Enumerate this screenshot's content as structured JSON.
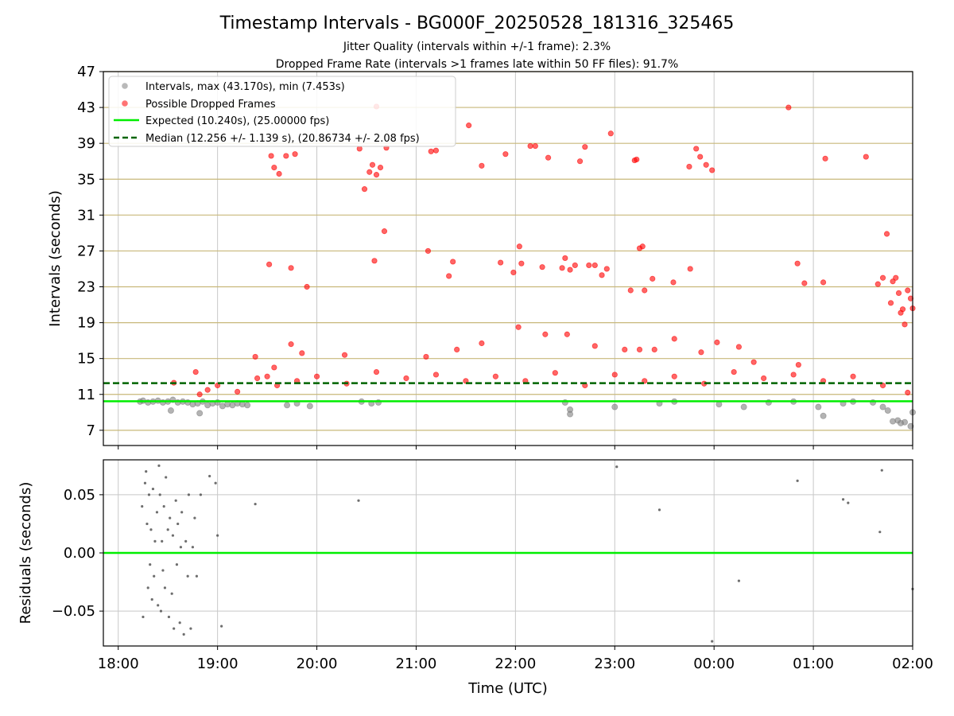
{
  "title": "Timestamp Intervals - BG000F_20250528_181316_325465",
  "subtitle_1": "Jitter Quality (intervals within +/-1 frame): 2.3%",
  "subtitle_2": "Dropped Frame Rate (intervals >1 frames late within 50 FF files): 91.7%",
  "colors": {
    "intervals": "#808080",
    "dropped": "#ff0000",
    "expected": "#00ee00",
    "median": "#006400",
    "hgrid": "#c8b87a",
    "vgrid": "#c8c8c8"
  },
  "chart_data": [
    {
      "type": "scatter",
      "panel": "top",
      "xlabel": "",
      "ylabel": "Intervals (seconds)",
      "x_unit": "hours since 18:00 UTC",
      "xlim": [
        -0.15,
        8.0
      ],
      "ylim": [
        5.3,
        47
      ],
      "yticks": [
        7,
        11,
        15,
        19,
        23,
        27,
        31,
        35,
        39,
        43,
        47
      ],
      "ytick_labels": [
        "7",
        "11",
        "15",
        "19",
        "23",
        "27",
        "31",
        "35",
        "39",
        "43",
        "47"
      ],
      "grid": "horizontal gridlines at y ticks, vertical gridlines at x ticks",
      "legend_position": "top-left",
      "legend": [
        "Intervals, max (43.170s), min (7.453s)",
        "Possible Dropped Frames",
        "Expected (10.240s), (25.00000 fps)",
        "Median (12.256 +/- 1.139 s), (20.86734 +/- 2.08 fps)"
      ],
      "expected_line": 10.24,
      "median_line": 12.256,
      "series": [
        {
          "name": "Intervals",
          "note": "gray points; dense band near 10.2s from 18:13 to 19:20 plus scattered points; only a sample of the visible points is listed",
          "points": [
            [
              0.22,
              10.2
            ],
            [
              0.25,
              10.3
            ],
            [
              0.3,
              10.1
            ],
            [
              0.35,
              10.2
            ],
            [
              0.4,
              10.3
            ],
            [
              0.45,
              10.1
            ],
            [
              0.5,
              10.2
            ],
            [
              0.55,
              10.4
            ],
            [
              0.6,
              10.1
            ],
            [
              0.65,
              10.2
            ],
            [
              0.7,
              10.1
            ],
            [
              0.75,
              9.9
            ],
            [
              0.8,
              10.0
            ],
            [
              0.85,
              10.2
            ],
            [
              0.9,
              9.8
            ],
            [
              0.95,
              10.0
            ],
            [
              1.0,
              10.1
            ],
            [
              1.05,
              9.7
            ],
            [
              1.1,
              9.9
            ],
            [
              1.15,
              9.8
            ],
            [
              1.2,
              10.0
            ],
            [
              1.25,
              9.9
            ],
            [
              1.3,
              9.8
            ],
            [
              0.53,
              9.2
            ],
            [
              0.82,
              8.9
            ],
            [
              1.7,
              9.8
            ],
            [
              1.8,
              10.0
            ],
            [
              1.93,
              9.7
            ],
            [
              2.45,
              10.2
            ],
            [
              2.55,
              10.0
            ],
            [
              2.62,
              10.1
            ],
            [
              4.5,
              10.1
            ],
            [
              4.55,
              9.3
            ],
            [
              4.55,
              8.8
            ],
            [
              5.0,
              9.6
            ],
            [
              5.45,
              10.0
            ],
            [
              5.6,
              10.2
            ],
            [
              6.05,
              9.9
            ],
            [
              6.3,
              9.6
            ],
            [
              6.55,
              10.1
            ],
            [
              6.8,
              10.2
            ],
            [
              7.05,
              9.6
            ],
            [
              7.1,
              8.6
            ],
            [
              7.3,
              10.0
            ],
            [
              7.4,
              10.2
            ],
            [
              7.6,
              10.1
            ],
            [
              7.7,
              9.6
            ],
            [
              7.75,
              9.2
            ],
            [
              7.8,
              8.0
            ],
            [
              7.85,
              8.1
            ],
            [
              7.88,
              7.8
            ],
            [
              7.92,
              7.9
            ],
            [
              7.98,
              7.45
            ],
            [
              8.0,
              9.0
            ]
          ]
        },
        {
          "name": "Possible Dropped Frames",
          "note": "red points; dense band between about 10.7s and 14s from 18:48 to 02:00, plus outliers; only a sample of the visible points is listed",
          "points": [
            [
              0.78,
              13.5
            ],
            [
              0.82,
              11.0
            ],
            [
              0.9,
              11.5
            ],
            [
              1.0,
              12.0
            ],
            [
              1.2,
              11.3
            ],
            [
              1.4,
              12.8
            ],
            [
              1.5,
              13.0
            ],
            [
              1.6,
              12.0
            ],
            [
              1.8,
              12.5
            ],
            [
              2.0,
              13.0
            ],
            [
              2.3,
              12.2
            ],
            [
              2.6,
              13.5
            ],
            [
              2.9,
              12.8
            ],
            [
              3.2,
              13.2
            ],
            [
              3.5,
              12.5
            ],
            [
              3.8,
              13.0
            ],
            [
              4.1,
              12.5
            ],
            [
              4.4,
              13.4
            ],
            [
              4.7,
              12.0
            ],
            [
              5.0,
              13.2
            ],
            [
              5.3,
              12.5
            ],
            [
              5.6,
              13.0
            ],
            [
              5.9,
              12.2
            ],
            [
              6.2,
              13.5
            ],
            [
              6.5,
              12.8
            ],
            [
              6.8,
              13.2
            ],
            [
              7.1,
              12.5
            ],
            [
              7.4,
              13.0
            ],
            [
              7.7,
              12.0
            ],
            [
              7.95,
              11.2
            ],
            [
              0.56,
              12.3
            ],
            [
              1.38,
              15.2
            ],
            [
              1.57,
              14.0
            ],
            [
              1.74,
              16.6
            ],
            [
              1.85,
              15.6
            ],
            [
              2.28,
              15.4
            ],
            [
              3.1,
              15.2
            ],
            [
              3.41,
              16.0
            ],
            [
              3.66,
              16.7
            ],
            [
              4.03,
              18.5
            ],
            [
              4.3,
              17.7
            ],
            [
              4.52,
              17.7
            ],
            [
              4.8,
              16.4
            ],
            [
              5.1,
              16.0
            ],
            [
              5.25,
              16.0
            ],
            [
              5.4,
              16.0
            ],
            [
              5.6,
              17.2
            ],
            [
              5.87,
              15.7
            ],
            [
              6.03,
              16.8
            ],
            [
              6.25,
              16.3
            ],
            [
              6.4,
              14.6
            ],
            [
              6.85,
              14.3
            ],
            [
              1.52,
              25.5
            ],
            [
              1.54,
              37.6
            ],
            [
              1.57,
              36.3
            ],
            [
              1.62,
              35.6
            ],
            [
              1.69,
              37.6
            ],
            [
              1.74,
              25.1
            ],
            [
              1.78,
              37.8
            ],
            [
              1.9,
              23.0
            ],
            [
              2.43,
              38.4
            ],
            [
              2.48,
              33.9
            ],
            [
              2.53,
              35.8
            ],
            [
              2.56,
              36.6
            ],
            [
              2.6,
              35.5
            ],
            [
              2.64,
              36.3
            ],
            [
              2.7,
              38.5
            ],
            [
              2.58,
              25.9
            ],
            [
              2.68,
              29.2
            ],
            [
              2.6,
              43.1
            ],
            [
              3.12,
              27.0
            ],
            [
              3.15,
              38.1
            ],
            [
              3.2,
              38.2
            ],
            [
              3.33,
              24.2
            ],
            [
              3.37,
              25.8
            ],
            [
              3.53,
              41.0
            ],
            [
              3.66,
              36.5
            ],
            [
              3.85,
              25.7
            ],
            [
              3.9,
              37.8
            ],
            [
              3.98,
              24.6
            ],
            [
              4.06,
              25.6
            ],
            [
              4.04,
              27.5
            ],
            [
              4.15,
              38.7
            ],
            [
              4.2,
              38.7
            ],
            [
              4.27,
              25.2
            ],
            [
              4.33,
              37.4
            ],
            [
              4.47,
              25.1
            ],
            [
              4.5,
              26.2
            ],
            [
              4.55,
              24.9
            ],
            [
              4.6,
              25.4
            ],
            [
              4.65,
              37.0
            ],
            [
              4.7,
              38.6
            ],
            [
              4.74,
              25.4
            ],
            [
              4.8,
              25.4
            ],
            [
              4.87,
              24.3
            ],
            [
              4.92,
              25.0
            ],
            [
              4.96,
              40.1
            ],
            [
              5.16,
              22.6
            ],
            [
              5.2,
              37.1
            ],
            [
              5.22,
              37.2
            ],
            [
              5.25,
              27.3
            ],
            [
              5.28,
              27.5
            ],
            [
              5.3,
              22.6
            ],
            [
              5.38,
              23.9
            ],
            [
              5.59,
              23.5
            ],
            [
              5.75,
              36.4
            ],
            [
              5.76,
              25.0
            ],
            [
              5.82,
              38.4
            ],
            [
              5.86,
              37.5
            ],
            [
              5.92,
              36.6
            ],
            [
              5.98,
              36.0
            ],
            [
              6.75,
              43.0
            ],
            [
              6.84,
              25.6
            ],
            [
              6.91,
              23.4
            ],
            [
              7.1,
              23.5
            ],
            [
              7.12,
              37.3
            ],
            [
              7.53,
              37.5
            ],
            [
              7.65,
              23.3
            ],
            [
              7.7,
              24.0
            ],
            [
              7.74,
              28.9
            ],
            [
              7.78,
              21.2
            ],
            [
              7.8,
              23.6
            ],
            [
              7.83,
              24.0
            ],
            [
              7.86,
              22.3
            ],
            [
              7.88,
              20.1
            ],
            [
              7.9,
              20.5
            ],
            [
              7.92,
              18.8
            ],
            [
              7.95,
              22.6
            ],
            [
              7.98,
              21.7
            ],
            [
              8.0,
              20.6
            ]
          ]
        }
      ]
    },
    {
      "type": "scatter",
      "panel": "bottom",
      "xlabel": "Time (UTC)",
      "ylabel": "Residuals (seconds)",
      "x_unit": "hours since 18:00 UTC",
      "xlim": [
        -0.15,
        8.0
      ],
      "ylim": [
        -0.08,
        0.08
      ],
      "yticks": [
        -0.05,
        0.0,
        0.05
      ],
      "ytick_labels": [
        "−0.05",
        "0.00",
        "0.05"
      ],
      "xticks": [
        0,
        1,
        2,
        3,
        4,
        5,
        6,
        7,
        8
      ],
      "xtick_labels": [
        "18:00",
        "19:00",
        "20:00",
        "21:00",
        "22:00",
        "23:00",
        "00:00",
        "01:00",
        "02:00"
      ],
      "zero_line": 0.0,
      "series": [
        {
          "name": "Residuals",
          "points": [
            [
              0.24,
              0.04
            ],
            [
              0.25,
              -0.055
            ],
            [
              0.27,
              0.06
            ],
            [
              0.28,
              0.07
            ],
            [
              0.29,
              0.025
            ],
            [
              0.3,
              -0.03
            ],
            [
              0.31,
              0.05
            ],
            [
              0.32,
              -0.01
            ],
            [
              0.33,
              0.02
            ],
            [
              0.34,
              -0.04
            ],
            [
              0.35,
              0.055
            ],
            [
              0.36,
              -0.02
            ],
            [
              0.37,
              0.01
            ],
            [
              0.39,
              0.035
            ],
            [
              0.4,
              -0.045
            ],
            [
              0.41,
              0.075
            ],
            [
              0.42,
              0.05
            ],
            [
              0.43,
              -0.05
            ],
            [
              0.44,
              0.01
            ],
            [
              0.45,
              -0.015
            ],
            [
              0.46,
              0.04
            ],
            [
              0.47,
              -0.03
            ],
            [
              0.48,
              0.065
            ],
            [
              0.5,
              0.02
            ],
            [
              0.51,
              -0.055
            ],
            [
              0.52,
              0.03
            ],
            [
              0.54,
              -0.035
            ],
            [
              0.55,
              0.015
            ],
            [
              0.56,
              -0.065
            ],
            [
              0.58,
              0.045
            ],
            [
              0.59,
              -0.01
            ],
            [
              0.6,
              0.025
            ],
            [
              0.62,
              -0.06
            ],
            [
              0.63,
              0.005
            ],
            [
              0.64,
              0.035
            ],
            [
              0.66,
              -0.07
            ],
            [
              0.68,
              0.01
            ],
            [
              0.7,
              -0.02
            ],
            [
              0.71,
              0.05
            ],
            [
              0.73,
              -0.065
            ],
            [
              0.75,
              0.005
            ],
            [
              0.77,
              0.03
            ],
            [
              0.79,
              -0.02
            ],
            [
              0.83,
              0.05
            ],
            [
              0.92,
              0.066
            ],
            [
              0.98,
              0.06
            ],
            [
              1.0,
              0.015
            ],
            [
              1.04,
              -0.063
            ],
            [
              1.38,
              0.042
            ],
            [
              2.42,
              0.045
            ],
            [
              5.02,
              0.074
            ],
            [
              5.45,
              0.037
            ],
            [
              5.98,
              -0.076
            ],
            [
              6.25,
              -0.024
            ],
            [
              6.84,
              0.062
            ],
            [
              7.3,
              0.046
            ],
            [
              7.35,
              0.043
            ],
            [
              7.67,
              0.018
            ],
            [
              7.69,
              0.071
            ],
            [
              8.0,
              -0.031
            ]
          ]
        }
      ]
    }
  ]
}
